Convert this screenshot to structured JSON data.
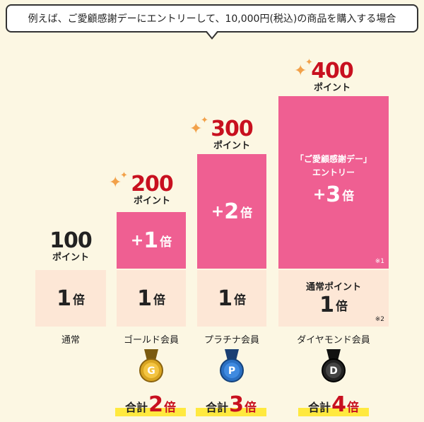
{
  "header": {
    "text": "例えば、ご愛顧感謝デーにエントリーして、10,000円(税込)の商品を購入する場合"
  },
  "point_unit": "ポイント",
  "multiplier_unit": "倍",
  "columns": [
    {
      "tier": "通常",
      "points": "100",
      "base": "1",
      "bonus": null,
      "total": null
    },
    {
      "tier": "ゴールド会員",
      "points": "200",
      "base": "1",
      "bonus": "1",
      "medal_letter": "G",
      "medal_color": "#d9a521",
      "total": "2"
    },
    {
      "tier": "プラチナ会員",
      "points": "300",
      "base": "1",
      "bonus": "2",
      "medal_letter": "P",
      "medal_color": "#2a6fc2",
      "total": "3"
    },
    {
      "tier": "ダイヤモンド会員",
      "points": "400",
      "base": "1",
      "base_label": "通常ポイント",
      "bonus": "3",
      "bonus_label_1": "「ご愛顧感謝デー」",
      "bonus_label_2": "エントリー",
      "note_bonus": "※1",
      "note_base": "※2",
      "medal_letter": "D",
      "medal_color": "#222222",
      "total": "4"
    }
  ],
  "total_label": "合計",
  "colors": {
    "pink": "#ef5f92",
    "peach": "#fde7d6",
    "red": "#c8101f",
    "highlight": "#ffe93f",
    "background": "#fcf7e3"
  }
}
